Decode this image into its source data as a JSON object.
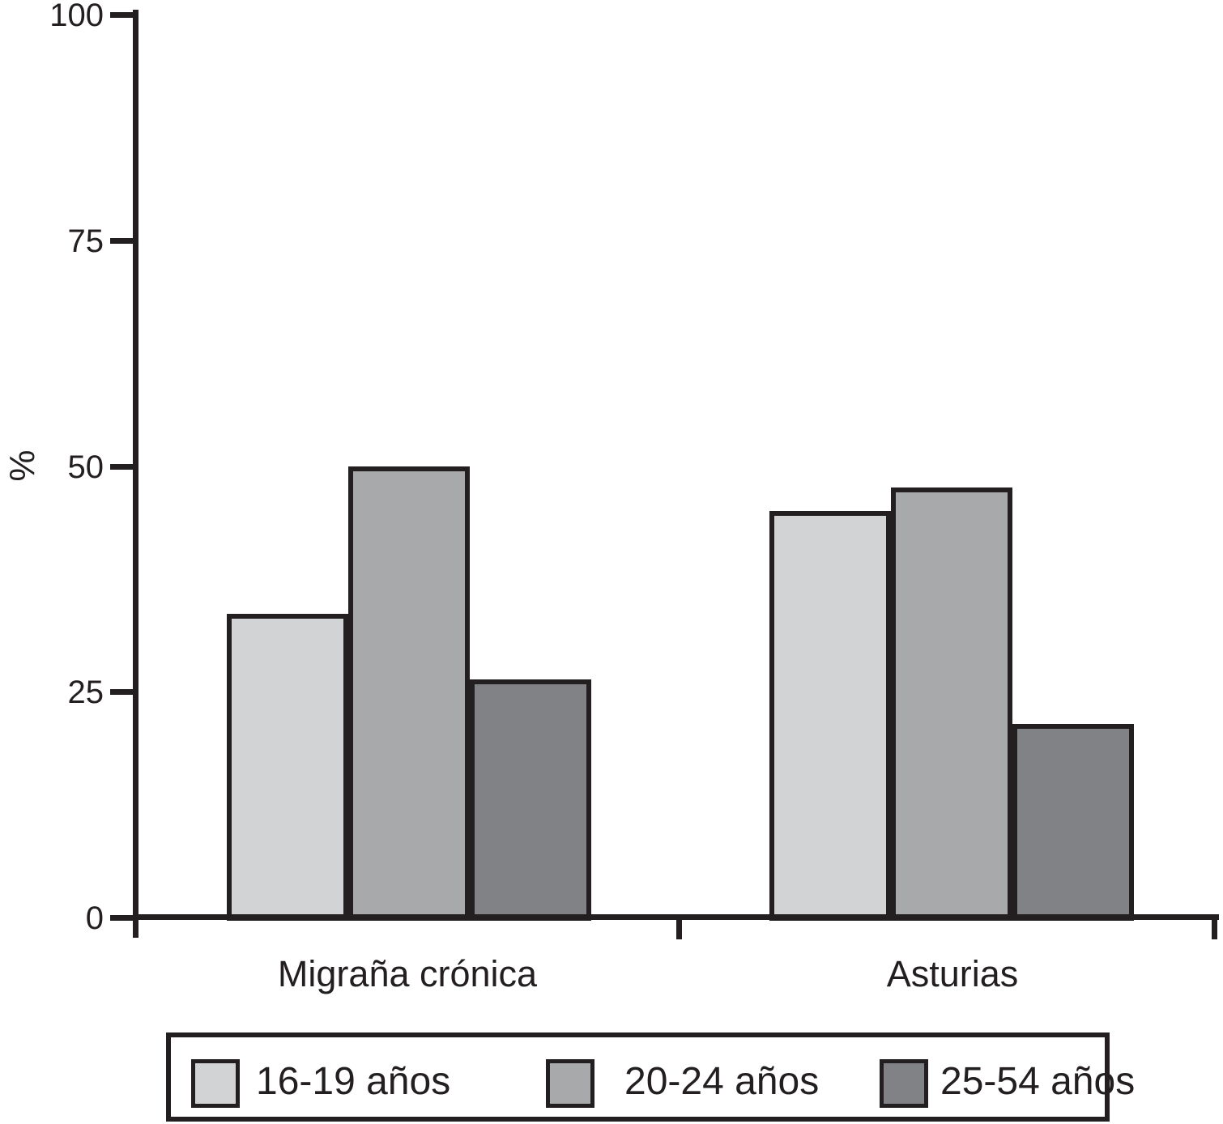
{
  "chart_data": {
    "type": "bar",
    "ylabel": "%",
    "categories": [
      "Migraña crónica",
      "Asturias"
    ],
    "series": [
      {
        "name": "16-19 años",
        "color": "#d1d3d4",
        "values": [
          33.6,
          45.0
        ]
      },
      {
        "name": "20-24 años",
        "color": "#a7a9ab",
        "values": [
          50.0,
          47.6
        ]
      },
      {
        "name": "25-54 años",
        "color": "#808285",
        "values": [
          26.4,
          21.4
        ]
      }
    ],
    "ylim": [
      0,
      100
    ],
    "yticks": [
      0,
      25,
      50,
      75,
      100
    ],
    "grid": false,
    "legend_position": "bottom",
    "axis_color": "#231f20",
    "background_color": "#ffffff"
  }
}
